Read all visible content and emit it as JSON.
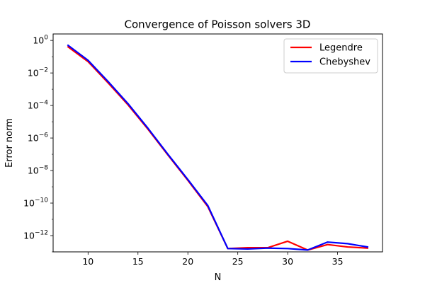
{
  "chart_data": {
    "type": "line",
    "title": "Convergence of Poisson solvers 3D",
    "xlabel": "N",
    "ylabel": "Error norm",
    "xlim": [
      6.5,
      39.5
    ],
    "ylim": [
      1e-13,
      2.5
    ],
    "yscale": "log",
    "grid": false,
    "legend_position": "top-right",
    "xticks": [
      10,
      15,
      20,
      25,
      30,
      35
    ],
    "yticks": [
      {
        "value": 1,
        "base": "10",
        "exp": "0"
      },
      {
        "value": 0.01,
        "base": "10",
        "exp": "−2"
      },
      {
        "value": 0.0001,
        "base": "10",
        "exp": "−4"
      },
      {
        "value": 1e-06,
        "base": "10",
        "exp": "−6"
      },
      {
        "value": 1e-08,
        "base": "10",
        "exp": "−8"
      },
      {
        "value": 1e-10,
        "base": "10",
        "exp": "−10"
      },
      {
        "value": 1e-12,
        "base": "10",
        "exp": "−12"
      }
    ],
    "series": [
      {
        "name": "Legendre",
        "color": "#ff0000",
        "x": [
          8,
          10,
          12,
          14,
          16,
          18,
          20,
          22,
          24,
          26,
          28,
          30,
          32,
          34,
          36,
          38
        ],
        "y": [
          0.4,
          0.05,
          0.0025,
          0.00011,
          3.5e-06,
          9e-08,
          2.5e-09,
          6e-11,
          1.6e-13,
          1.8e-13,
          1.8e-13,
          4.5e-13,
          1.3e-13,
          2.8e-13,
          2e-13,
          1.7e-13
        ]
      },
      {
        "name": "Chebyshev",
        "color": "#0000ff",
        "x": [
          8,
          10,
          12,
          14,
          16,
          18,
          20,
          22,
          24,
          26,
          28,
          30,
          32,
          34,
          36,
          38
        ],
        "y": [
          0.5,
          0.06,
          0.003,
          0.00013,
          4e-06,
          1e-07,
          2.8e-09,
          7e-11,
          1.6e-13,
          1.5e-13,
          1.7e-13,
          1.6e-13,
          1.3e-13,
          4e-13,
          3.2e-13,
          2e-13
        ]
      }
    ]
  }
}
